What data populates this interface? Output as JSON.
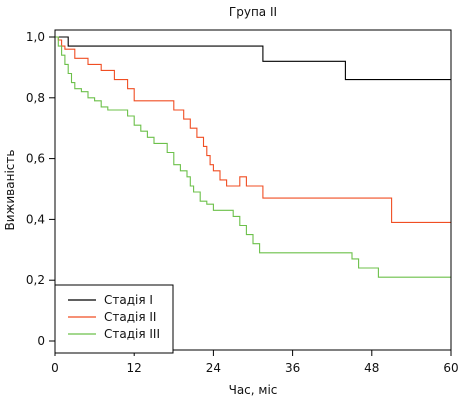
{
  "chart_data": {
    "type": "line",
    "title": "Група II",
    "xlabel": "Час, міс",
    "ylabel": "Виживаність",
    "xlim": [
      0,
      60
    ],
    "ylim": [
      0,
      1.0
    ],
    "x_ticks": [
      0,
      12,
      24,
      36,
      48,
      60
    ],
    "x_tick_labels": [
      "0",
      "12",
      "24",
      "36",
      "48",
      "60"
    ],
    "y_ticks": [
      0,
      0.2,
      0.4,
      0.6,
      0.8,
      1.0
    ],
    "y_tick_labels": [
      "0",
      "0,2",
      "0,4",
      "0,6",
      "0,8",
      "1,0"
    ],
    "grid": false,
    "legend_position": "bottom-left",
    "series": [
      {
        "name": "Стадія I",
        "color": "#000000",
        "step": "post",
        "x": [
          0,
          2,
          31.5,
          44,
          60
        ],
        "y": [
          1.0,
          0.97,
          0.92,
          0.86,
          0.86
        ]
      },
      {
        "name": "Стадія II",
        "color": "#f04e23",
        "step": "post",
        "x": [
          0,
          0.5,
          1,
          1.5,
          3,
          5,
          7,
          9,
          11,
          12,
          18,
          19.5,
          20.5,
          21.5,
          22.5,
          23,
          23.5,
          24,
          25,
          26,
          28,
          29,
          31.5,
          51,
          60
        ],
        "y": [
          1.0,
          0.99,
          0.97,
          0.96,
          0.93,
          0.91,
          0.89,
          0.86,
          0.83,
          0.79,
          0.76,
          0.73,
          0.7,
          0.67,
          0.64,
          0.61,
          0.58,
          0.56,
          0.53,
          0.51,
          0.54,
          0.51,
          0.47,
          0.39,
          0.39
        ]
      },
      {
        "name": "Стадія III",
        "color": "#6cc04a",
        "step": "post",
        "x": [
          0,
          0.5,
          1,
          1.5,
          2,
          2.5,
          3,
          4,
          5,
          6,
          7,
          8,
          11,
          12,
          13,
          14,
          15,
          17,
          18,
          19,
          20,
          20.5,
          21,
          22,
          23,
          24,
          25,
          27,
          28,
          29,
          30,
          31,
          45,
          46,
          49,
          60
        ],
        "y": [
          1.0,
          0.97,
          0.94,
          0.91,
          0.88,
          0.85,
          0.83,
          0.82,
          0.8,
          0.79,
          0.77,
          0.76,
          0.74,
          0.71,
          0.69,
          0.67,
          0.65,
          0.62,
          0.58,
          0.56,
          0.54,
          0.51,
          0.49,
          0.46,
          0.45,
          0.43,
          0.43,
          0.41,
          0.38,
          0.35,
          0.32,
          0.29,
          0.27,
          0.24,
          0.21,
          0.21
        ]
      }
    ]
  }
}
